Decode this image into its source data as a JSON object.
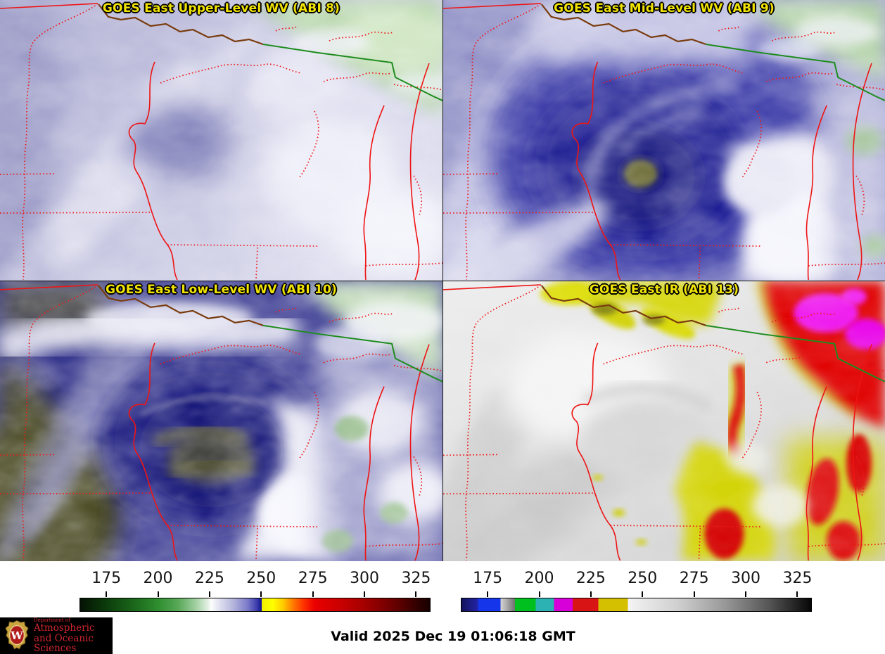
{
  "panels": [
    {
      "id": "abi8",
      "title": "GOES East Upper-Level WV (ABI 8)"
    },
    {
      "id": "abi9",
      "title": "GOES East Mid-Level WV (ABI 9)"
    },
    {
      "id": "abi10",
      "title": "GOES East Low-Level WV (ABI 10)"
    },
    {
      "id": "abi13",
      "title": "GOES East IR (ABI 13)"
    }
  ],
  "colorbars": [
    {
      "name": "wv-colorbar",
      "ticks": [
        175,
        200,
        225,
        250,
        275,
        300,
        325
      ],
      "range": [
        162,
        332
      ],
      "stops": [
        [
          0,
          "#041204"
        ],
        [
          7.6,
          "#0c3c0c"
        ],
        [
          15,
          "#1a651a"
        ],
        [
          22.4,
          "#2f8f2f"
        ],
        [
          28,
          "#58a858"
        ],
        [
          33,
          "#a0cfa0"
        ],
        [
          36.8,
          "#e9f3e9"
        ],
        [
          37.4,
          "#fdfdfd"
        ],
        [
          40,
          "#dedeef"
        ],
        [
          44,
          "#b2b2dc"
        ],
        [
          48,
          "#7878c8"
        ],
        [
          50.6,
          "#3a3aac"
        ],
        [
          51.9,
          "#10108c"
        ],
        [
          51.9,
          "#f0f000"
        ],
        [
          55,
          "#ffff00"
        ],
        [
          58,
          "#ffcc00"
        ],
        [
          61,
          "#ff7700"
        ],
        [
          64,
          "#ff3000"
        ],
        [
          67,
          "#ea0000"
        ],
        [
          73,
          "#d00000"
        ],
        [
          80,
          "#ac0000"
        ],
        [
          86,
          "#840000"
        ],
        [
          92,
          "#570000"
        ],
        [
          97,
          "#2c0000"
        ],
        [
          100,
          "#170000"
        ]
      ]
    },
    {
      "name": "ir-colorbar",
      "ticks": [
        175,
        200,
        225,
        250,
        275,
        300,
        325
      ],
      "range": [
        162,
        332
      ],
      "stops": [
        [
          0,
          "#131358"
        ],
        [
          2.5,
          "#1c1c86"
        ],
        [
          4.7,
          "#2222a4"
        ],
        [
          4.7,
          "#1535ea"
        ],
        [
          11.2,
          "#1535ea"
        ],
        [
          11.2,
          "#d4d4d4"
        ],
        [
          13,
          "#ababab"
        ],
        [
          15.3,
          "#6f6f6f"
        ],
        [
          15.3,
          "#00c020"
        ],
        [
          21.2,
          "#00c020"
        ],
        [
          21.2,
          "#2cb2b2"
        ],
        [
          26.5,
          "#2cb2b2"
        ],
        [
          26.5,
          "#d800d8"
        ],
        [
          31.8,
          "#d800d8"
        ],
        [
          31.8,
          "#d81414"
        ],
        [
          39.1,
          "#d81414"
        ],
        [
          39.1,
          "#d4c000"
        ],
        [
          47.6,
          "#d4c000"
        ],
        [
          47.6,
          "#f4f4f4"
        ],
        [
          62,
          "#cfcfcf"
        ],
        [
          75,
          "#9a9a9a"
        ],
        [
          88,
          "#555555"
        ],
        [
          100,
          "#060606"
        ]
      ]
    }
  ],
  "footer": {
    "valid_label": "Valid 2025 Dec 19 01:06:18 GMT",
    "logo": {
      "dept": "Department of",
      "line1": "Atmospheric",
      "line2": "and Oceanic Sciences",
      "crest_letter": "W"
    }
  },
  "colors": {
    "title_text": "#f2e400",
    "state_border": "#f01818",
    "international_border_water": "#1e8c1e",
    "international_border_land": "#7a3c0e",
    "logo_red": "#d22630",
    "logo_bg": "#000000"
  }
}
